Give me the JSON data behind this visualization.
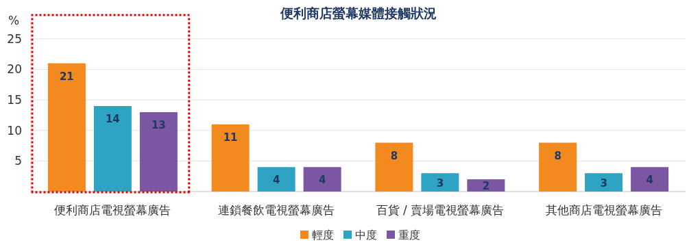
{
  "chart_data": {
    "type": "bar",
    "title": "便利商店螢幕媒體接觸狀況",
    "ylabel": "%",
    "categories": [
      "便利商店電視螢幕廣告",
      "連鎖餐飲電視螢幕廣告",
      "百貨 / 賣場電視螢幕廣告",
      "其他商店電視螢幕廣告"
    ],
    "series": [
      {
        "name": "輕度",
        "color": "#f28a1f",
        "values": [
          21,
          11,
          8,
          8
        ]
      },
      {
        "name": "中度",
        "color": "#2ea3c3",
        "values": [
          14,
          4,
          3,
          3
        ]
      },
      {
        "name": "重度",
        "color": "#7a56a3",
        "values": [
          13,
          4,
          2,
          4
        ]
      }
    ],
    "ylim": [
      0,
      28
    ],
    "yticks": [
      5,
      10,
      15,
      20,
      25
    ],
    "grid": "y",
    "legend": "bottom",
    "data_labels": true
  }
}
